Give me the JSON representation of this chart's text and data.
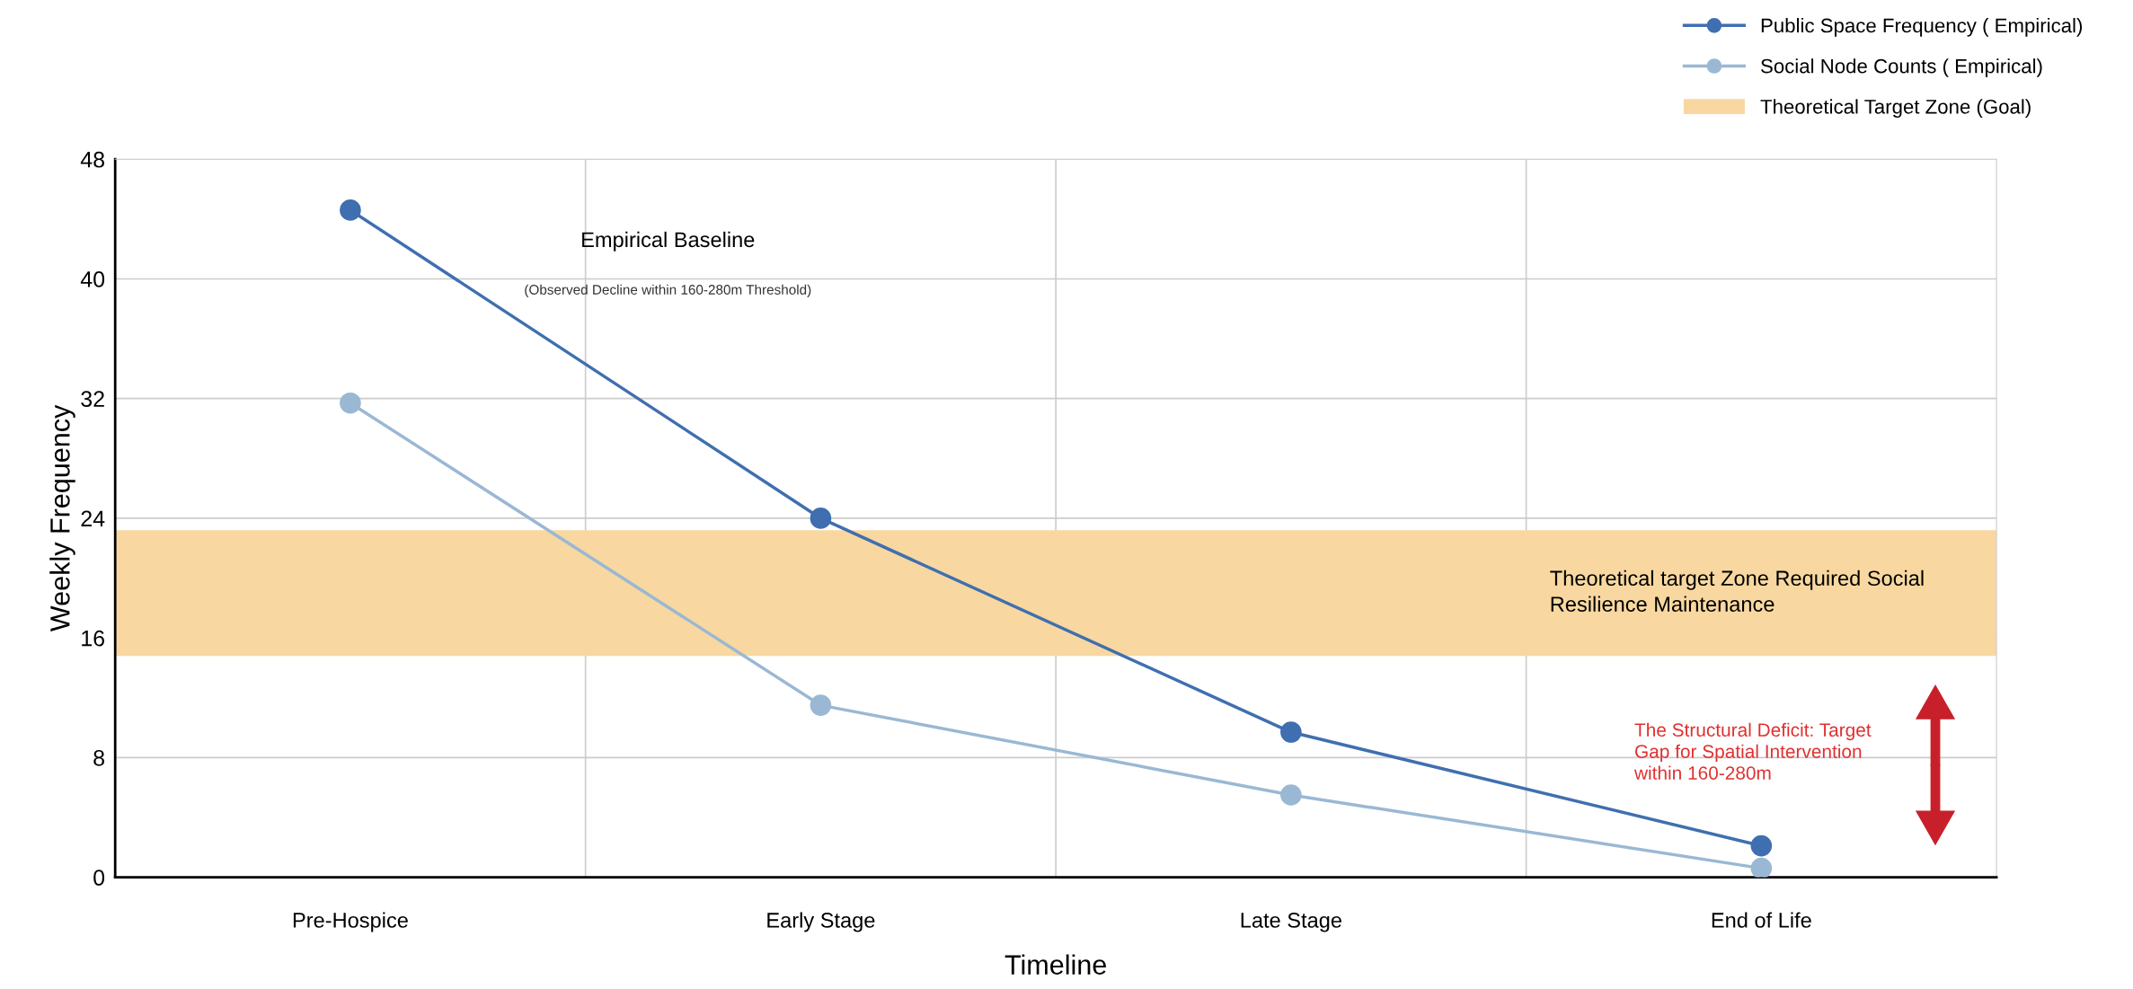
{
  "chart_data": {
    "type": "line",
    "xlabel": "Timeline",
    "ylabel": "Weekly Frequency",
    "categories": [
      "Pre-Hospice",
      "Early Stage",
      "Late Stage",
      "End of Life"
    ],
    "series": [
      {
        "name": "Public Space Frequency ( Empirical)",
        "color": "#3f6fb0",
        "values": [
          44.6,
          24,
          9.7,
          2.1
        ]
      },
      {
        "name": "Social Node Counts ( Empirical)",
        "color": "#9ab8d4",
        "values": [
          31.7,
          11.5,
          5.5,
          0.6
        ]
      }
    ],
    "bands": [
      {
        "axis": "y",
        "from": 14.8,
        "to": 23.2,
        "label": "Theoretical Target Zone (Goal)",
        "color": "#f8d8a0"
      }
    ],
    "annotations": [
      "Empirical Baseline",
      "(Observed Decline within 160-280m Threshold)",
      "Theoretical target Zone Required Social\nResilience Maintenance",
      "The Structural Deficit: Target\nGap for Spatial Intervention\nwithin 160-280m"
    ],
    "ylim": [
      0,
      48
    ],
    "yticks": [
      0,
      8,
      16,
      24,
      32,
      40,
      48
    ],
    "grid": true,
    "legend": "top right",
    "marker": "circle",
    "line_style": "solid"
  }
}
